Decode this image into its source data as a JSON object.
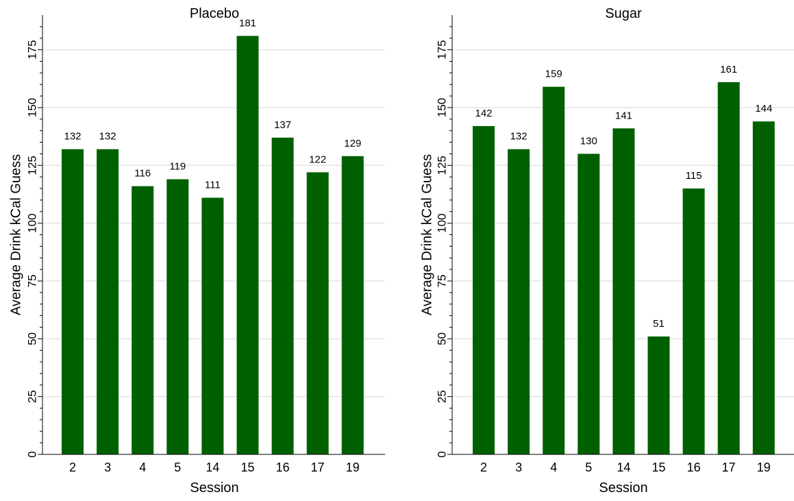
{
  "chart_data": [
    {
      "type": "bar",
      "title": "Placebo",
      "xlabel": "Session",
      "ylabel": "Average Drink kCal Guess",
      "categories": [
        "2",
        "3",
        "4",
        "5",
        "14",
        "15",
        "16",
        "17",
        "19"
      ],
      "values": [
        132,
        132,
        116,
        119,
        111,
        181,
        137,
        122,
        129
      ],
      "value_labels": [
        "132",
        "132",
        "116",
        "119",
        "111",
        "181",
        "137",
        "122",
        "129"
      ],
      "ylim": [
        0,
        190
      ],
      "yticks": [
        "0",
        "25",
        "50",
        "75",
        "100",
        "125",
        "150",
        "175"
      ],
      "grid": true,
      "bar_color": "#006000",
      "grid_color": "#e3e3e3"
    },
    {
      "type": "bar",
      "title": "Sugar",
      "xlabel": "Session",
      "ylabel": "Average Drink kCal Guess",
      "categories": [
        "2",
        "3",
        "4",
        "5",
        "14",
        "15",
        "16",
        "17",
        "19"
      ],
      "values": [
        142,
        132,
        159,
        130,
        141,
        51,
        115,
        161,
        144
      ],
      "value_labels": [
        "142",
        "132",
        "159",
        "130",
        "141",
        "51",
        "115",
        "161",
        "144"
      ],
      "ylim": [
        0,
        190
      ],
      "yticks": [
        "0",
        "25",
        "50",
        "75",
        "100",
        "125",
        "150",
        "175"
      ],
      "grid": true,
      "bar_color": "#006000",
      "grid_color": "#e3e3e3"
    }
  ]
}
